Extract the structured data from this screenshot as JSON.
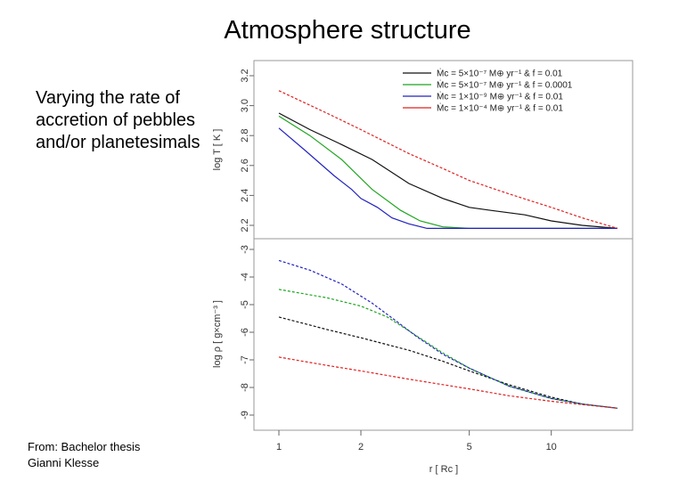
{
  "slide": {
    "title": "Atmosphere structure",
    "side_text": "Varying the rate of accretion of pebbles and/or planetesimals",
    "source": "From: Bachelor thesis\nGianni Klesse"
  },
  "colors": {
    "black": "#111111",
    "green": "#1fa51f",
    "blue": "#2222c0",
    "red": "#e02020"
  },
  "chart_data": [
    {
      "type": "line",
      "panel": "top",
      "title": "",
      "xlabel": "",
      "ylabel": "log T [ K ]",
      "xscale": "log",
      "xlim": [
        1,
        17.5
      ],
      "ylim": [
        2.1,
        3.3
      ],
      "yticks": [
        2.2,
        2.4,
        2.6,
        2.8,
        3.0,
        3.2
      ],
      "ytick_labels": [
        "2.2",
        "2.4",
        "2.6",
        "2.8",
        "3.0",
        "3.2"
      ],
      "legend_position": "top-right",
      "legend": [
        "Ṁc = 5×10⁻⁷ M⊕ yr⁻¹  &  f = 0.01",
        "Ṁc = 5×10⁻⁷ M⊕ yr⁻¹  &  f = 0.0001",
        "Ṁc = 1×10⁻⁹ M⊕ yr⁻¹  &  f = 0.01",
        "Ṁc = 1×10⁻⁴ M⊕ yr⁻¹  &  f = 0.01"
      ],
      "series": [
        {
          "color": "black",
          "dashed": false,
          "x": [
            1,
            1.3,
            1.7,
            2.2,
            3,
            4,
            5,
            6,
            8,
            10,
            13,
            17.5
          ],
          "y": [
            2.95,
            2.84,
            2.74,
            2.64,
            2.48,
            2.38,
            2.32,
            2.3,
            2.27,
            2.23,
            2.2,
            2.18
          ]
        },
        {
          "color": "green",
          "dashed": false,
          "x": [
            1,
            1.3,
            1.7,
            2.2,
            2.8,
            3.3,
            4,
            5,
            8,
            12,
            17.5
          ],
          "y": [
            2.93,
            2.8,
            2.64,
            2.44,
            2.3,
            2.23,
            2.19,
            2.18,
            2.18,
            2.18,
            2.18
          ]
        },
        {
          "color": "blue",
          "dashed": false,
          "x": [
            1,
            1.25,
            1.6,
            1.85,
            2.0,
            2.3,
            2.6,
            3.0,
            3.5,
            5,
            10,
            17.5
          ],
          "y": [
            2.85,
            2.7,
            2.53,
            2.44,
            2.38,
            2.32,
            2.25,
            2.21,
            2.18,
            2.18,
            2.18,
            2.18
          ]
        },
        {
          "color": "red",
          "dashed": true,
          "x": [
            1,
            1.5,
            2,
            3,
            4,
            5,
            7,
            10,
            13,
            17.5
          ],
          "y": [
            3.1,
            2.95,
            2.84,
            2.68,
            2.58,
            2.5,
            2.41,
            2.32,
            2.25,
            2.18
          ]
        }
      ]
    },
    {
      "type": "line",
      "panel": "bottom",
      "title": "",
      "xlabel": "r [ Rc ]",
      "ylabel": "log ρ [ g×cm⁻³ ]",
      "xscale": "log",
      "xlim": [
        1,
        17.5
      ],
      "ylim": [
        -9.2,
        -2.8
      ],
      "xticks": [
        1,
        2,
        5,
        10
      ],
      "xtick_labels": [
        "1",
        "2",
        "5",
        "10"
      ],
      "yticks": [
        -3,
        -4,
        -5,
        -6,
        -7,
        -8,
        -9
      ],
      "ytick_labels": [
        "-3",
        "-4",
        "-5",
        "-6",
        "-7",
        "-8",
        "-9"
      ],
      "series": [
        {
          "color": "black",
          "dashed": true,
          "x": [
            1,
            1.5,
            2,
            3,
            4,
            5,
            7,
            10,
            13,
            17.5
          ],
          "y": [
            -5.45,
            -5.9,
            -6.2,
            -6.65,
            -7.05,
            -7.4,
            -7.9,
            -8.35,
            -8.6,
            -8.75
          ]
        },
        {
          "color": "green",
          "dashed": true,
          "x": [
            1,
            1.5,
            2,
            2.5,
            3,
            4,
            5,
            7,
            10,
            13,
            17.5
          ],
          "y": [
            -4.45,
            -4.75,
            -5.05,
            -5.45,
            -5.95,
            -6.75,
            -7.3,
            -7.95,
            -8.4,
            -8.6,
            -8.75
          ]
        },
        {
          "color": "blue",
          "dashed": true,
          "x": [
            1,
            1.3,
            1.7,
            2.2,
            2.7,
            3.2,
            4,
            5,
            7,
            10,
            13,
            17.5
          ],
          "y": [
            -3.4,
            -3.75,
            -4.25,
            -4.95,
            -5.6,
            -6.15,
            -6.8,
            -7.3,
            -7.95,
            -8.4,
            -8.6,
            -8.75
          ]
        },
        {
          "color": "red",
          "dashed": true,
          "x": [
            1,
            1.5,
            2,
            3,
            5,
            7,
            10,
            13,
            17.5
          ],
          "y": [
            -6.9,
            -7.2,
            -7.4,
            -7.7,
            -8.05,
            -8.3,
            -8.5,
            -8.62,
            -8.75
          ]
        }
      ]
    }
  ]
}
